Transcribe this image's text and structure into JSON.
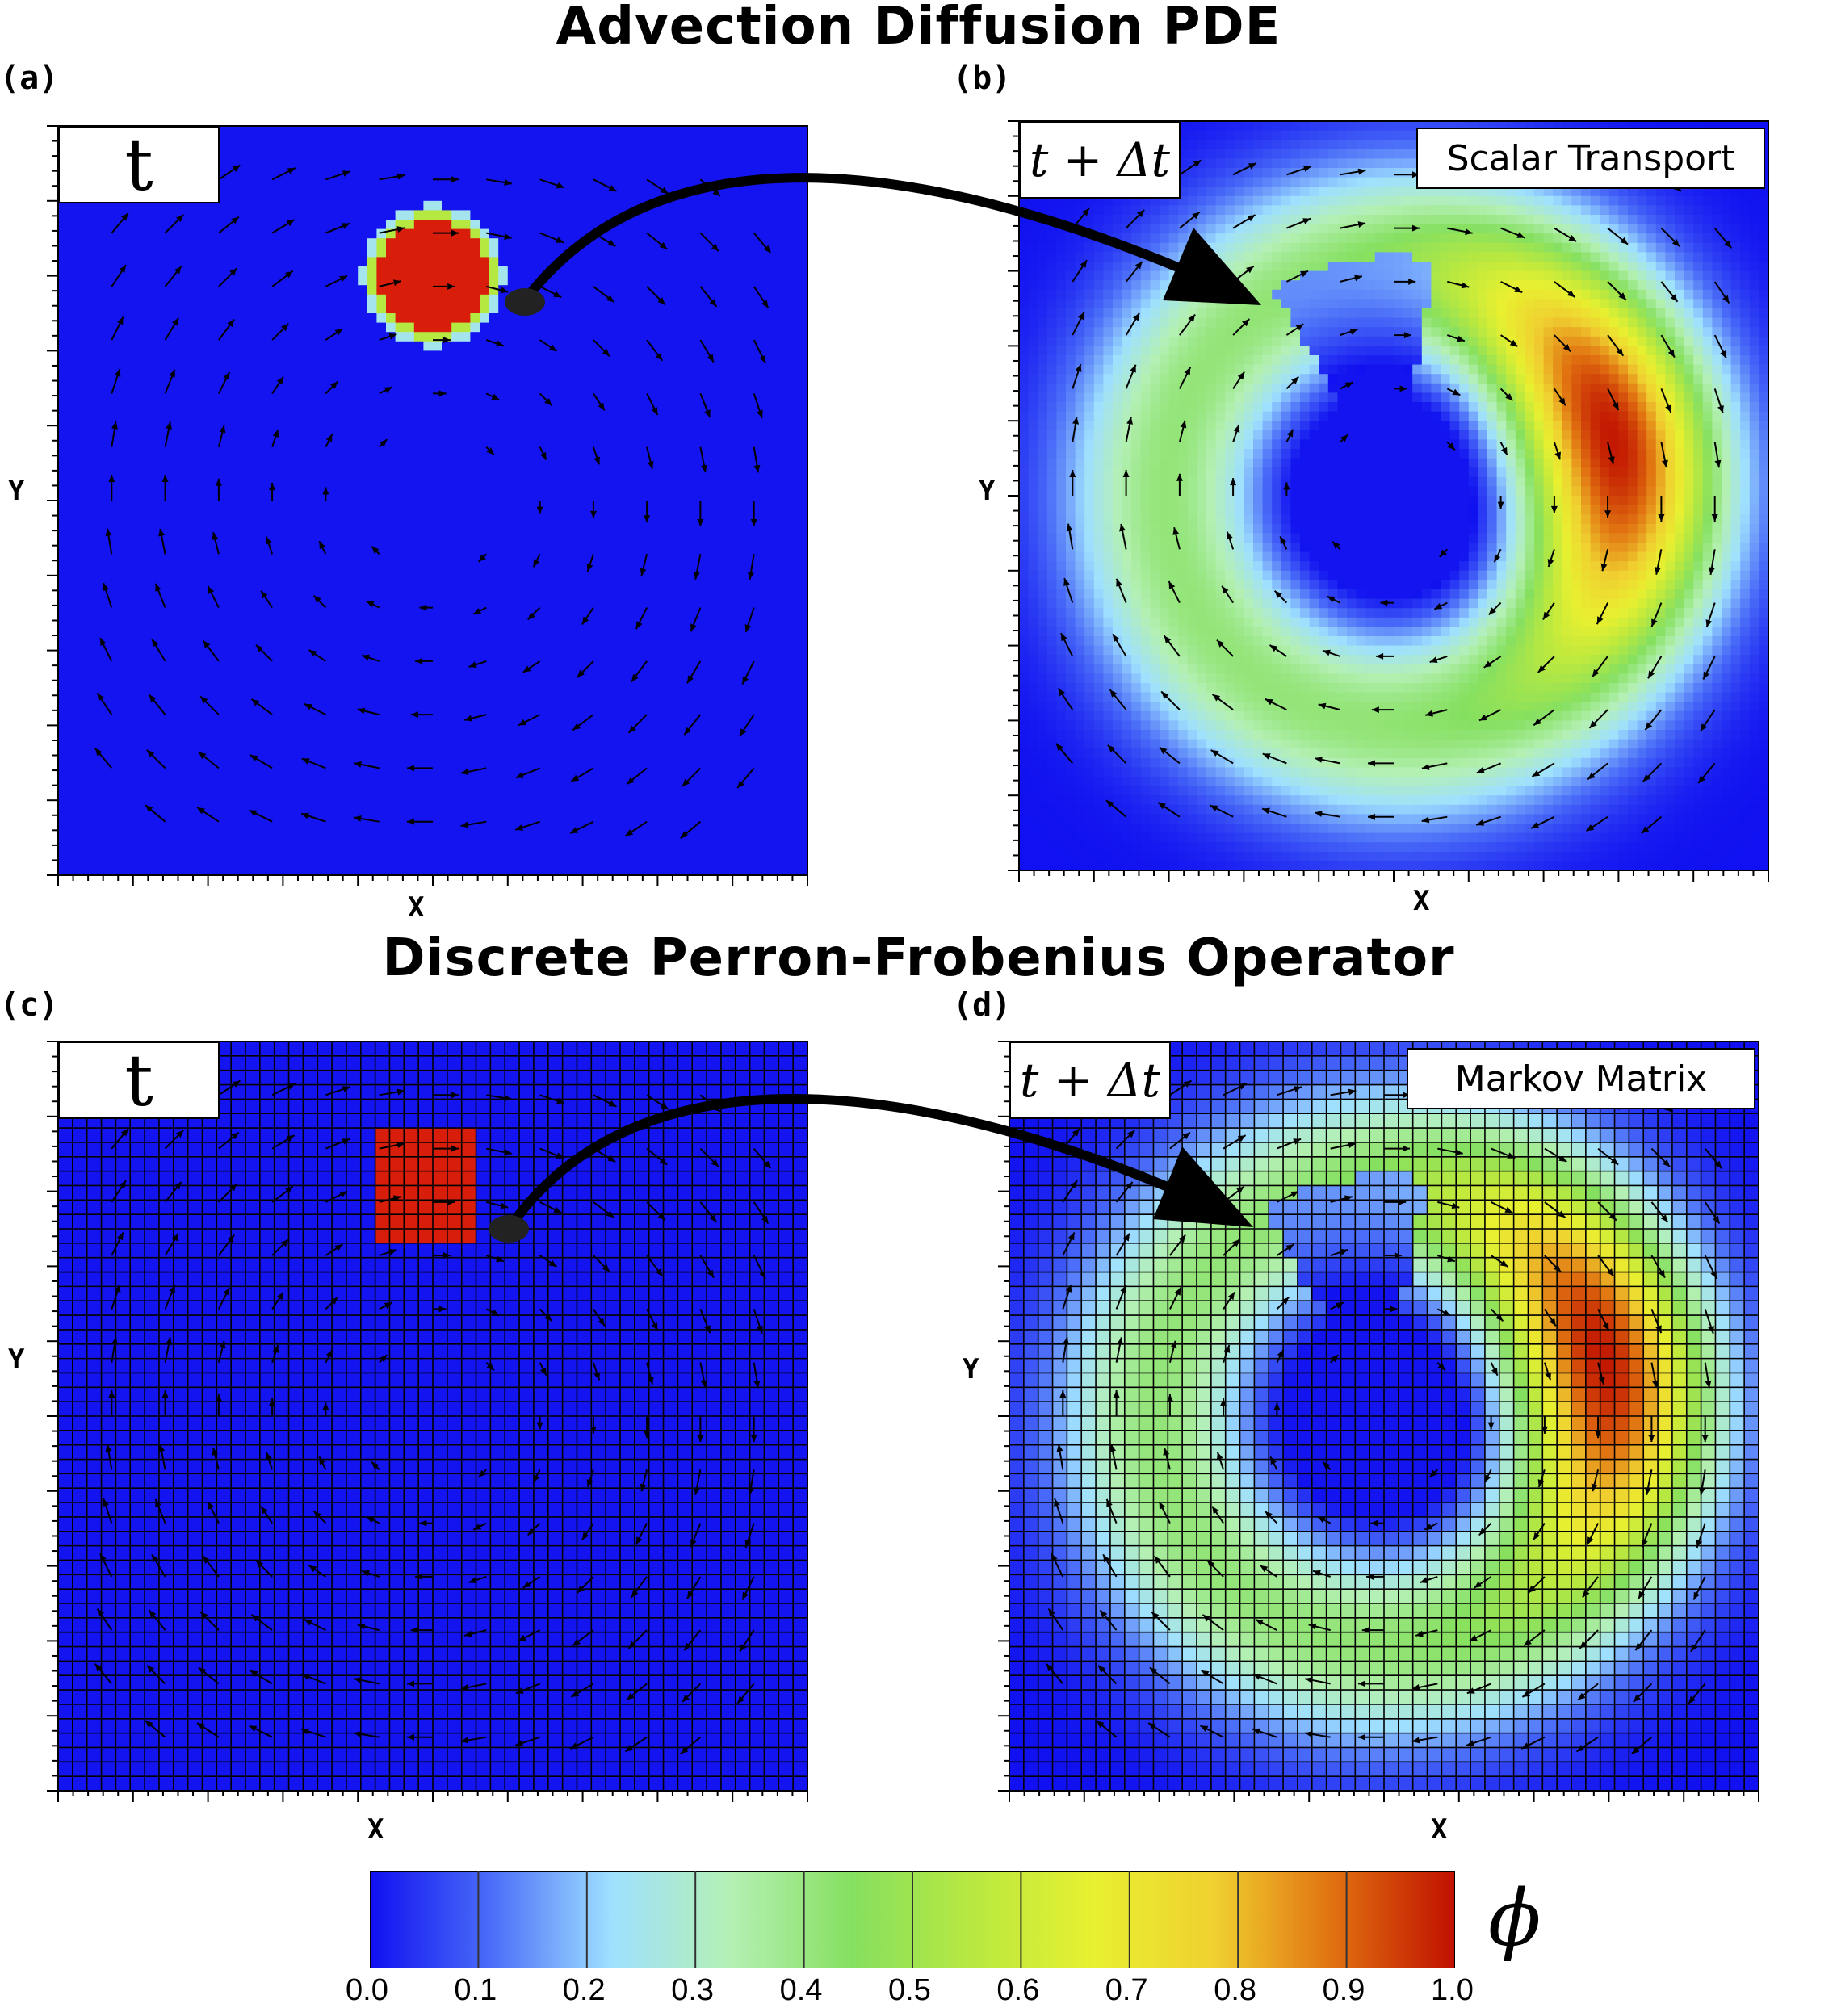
{
  "titles": {
    "top": "Advection Diffusion PDE",
    "bottom": "Discrete Perron-Frobenius Operator"
  },
  "panels": [
    {
      "id": "a",
      "label": "(a)",
      "time": "t",
      "name": "",
      "xlabel": "X",
      "ylabel": "Y",
      "grid": false,
      "field": "blob-smooth"
    },
    {
      "id": "b",
      "label": "(b)",
      "time": "t + Δt",
      "name": "Scalar Transport",
      "xlabel": "X",
      "ylabel": "Y",
      "grid": false,
      "field": "swirl-smooth"
    },
    {
      "id": "c",
      "label": "(c)",
      "time": "t",
      "name": "",
      "xlabel": "X",
      "ylabel": "Y",
      "grid": true,
      "field": "blob-cells"
    },
    {
      "id": "d",
      "label": "(d)",
      "time": "t + Δt",
      "name": "Markov Matrix",
      "xlabel": "X",
      "ylabel": "Y",
      "grid": true,
      "field": "swirl-cells"
    }
  ],
  "colorbar": {
    "symbol": "ϕ",
    "ticks": [
      "0.0",
      "0.1",
      "0.2",
      "0.3",
      "0.4",
      "0.5",
      "0.6",
      "0.7",
      "0.8",
      "0.9",
      "1.0"
    ],
    "colors": [
      "#1010f0",
      "#4a6cf8",
      "#9fe0ff",
      "#b4f0b4",
      "#86e060",
      "#b8e840",
      "#e8f030",
      "#f0d030",
      "#e07010",
      "#c01000"
    ]
  },
  "colors": {
    "background_field": "#1414f0",
    "blob": "#d81e0a"
  }
}
